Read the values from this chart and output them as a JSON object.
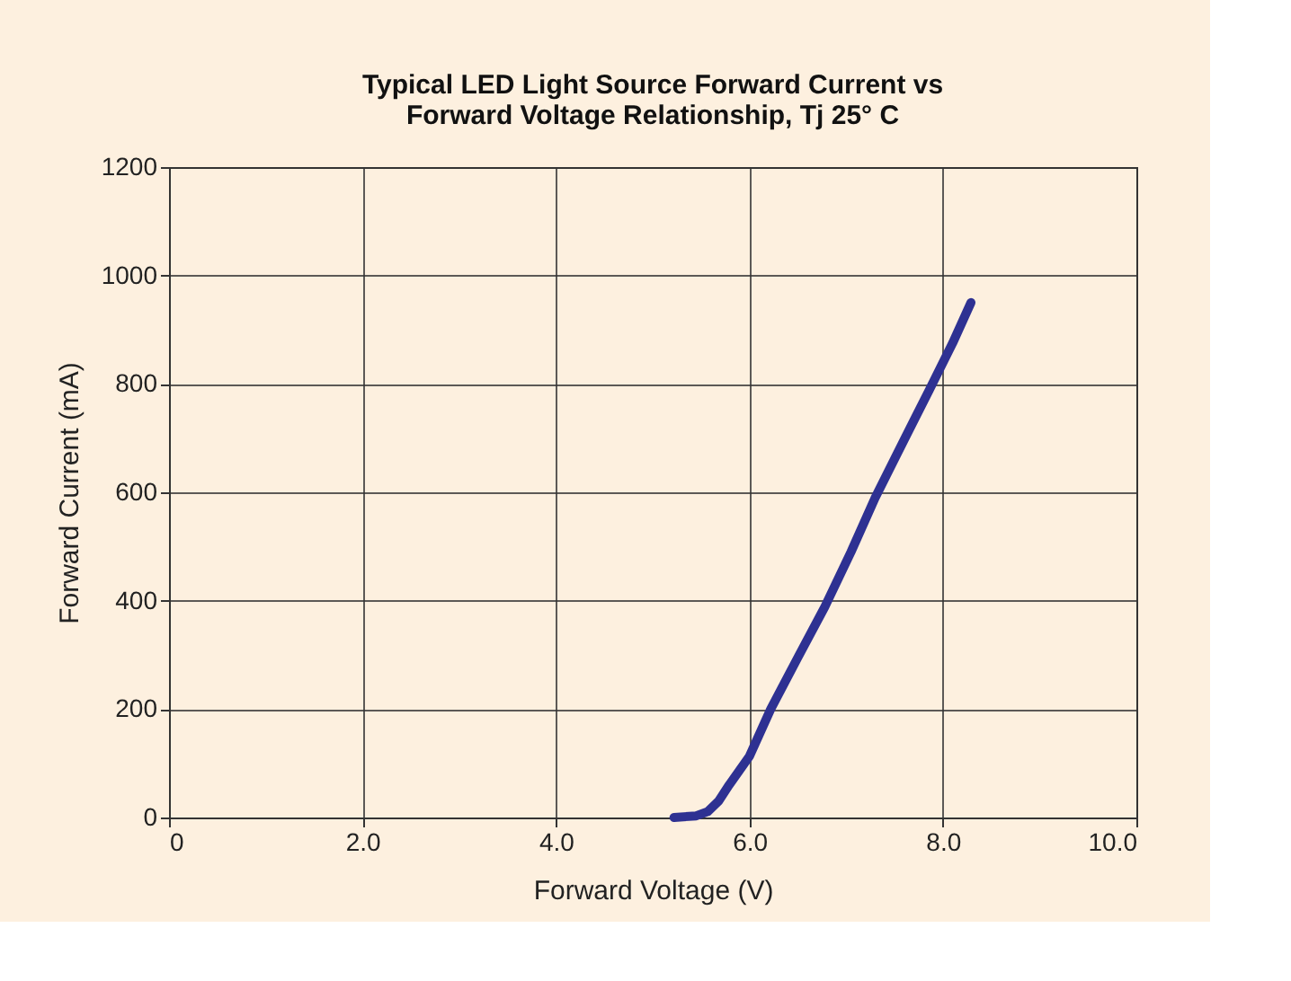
{
  "chart_data": {
    "type": "line",
    "title": "Typical LED Light Source Forward Current vs\nForward Voltage Relationship, Tj 25° C",
    "xlabel": "Forward Voltage (V)",
    "ylabel": "Forward Current (mA)",
    "series": [
      {
        "color": "#2e3192",
        "x": [
          5.22,
          5.45,
          5.57,
          5.68,
          5.79,
          6.0,
          6.22,
          6.5,
          6.78,
          7.05,
          7.3,
          7.58,
          7.86,
          8.1,
          8.29
        ],
        "values": [
          0,
          3,
          11,
          30,
          60,
          113,
          200,
          295,
          389,
          490,
          590,
          690,
          789,
          875,
          950
        ]
      }
    ],
    "xlim": [
      0,
      10
    ],
    "ylim": [
      0,
      1200
    ],
    "xticks": [
      0,
      {
        "value": 2,
        "label": "2.0"
      },
      {
        "value": 4,
        "label": "4.0"
      },
      {
        "value": 6,
        "label": "6.0"
      },
      {
        "value": 8,
        "label": "8.0"
      },
      {
        "value": 10,
        "label": "10.0"
      }
    ],
    "yticks": [
      0,
      200,
      400,
      600,
      800,
      1000,
      1200
    ],
    "grid": true,
    "marker": "none",
    "line_style": "solid"
  }
}
